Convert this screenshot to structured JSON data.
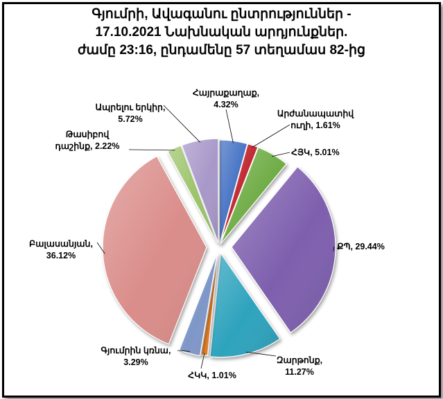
{
  "chart_data": {
    "type": "pie",
    "title_lines": [
      "Գյումրի, Ավագանու ընտրություններ -",
      "17.10.2021  Նախնական արդյունքներ.",
      "ժամը 23:16, ընդամենը 57 տեղամաս 82-ից"
    ],
    "slices": [
      {
        "name": "Հայրաքաղաք",
        "value": 4.32,
        "color": "#4472C4",
        "label": [
          "Հայրաքաղաք,",
          "4.32%"
        ]
      },
      {
        "name": "Արժանապատիվ ուղի",
        "value": 1.61,
        "color": "#C0282D",
        "label": [
          "Արժանապատիվ",
          "ուղի, 1.61%"
        ]
      },
      {
        "name": "ՀՅԿ",
        "value": 5.01,
        "color": "#70AD47",
        "label": [
          "ՀՅԿ, 5.01%"
        ]
      },
      {
        "name": "ՔՊ",
        "value": 29.44,
        "color": "#7E5FAE",
        "label": [
          "ՔՊ, 29.44%"
        ]
      },
      {
        "name": "Զարթոնք",
        "value": 11.27,
        "color": "#2EA3BD",
        "label": [
          "Զարթոնք,",
          "11.27%"
        ]
      },
      {
        "name": "ՀԿԿ",
        "value": 1.01,
        "color": "#E07B28",
        "label": [
          "ՀԿԿ, 1.01%"
        ]
      },
      {
        "name": "Գյումրին կռնա",
        "value": 3.29,
        "color": "#7F97C8",
        "label": [
          "Գյումրին կռնա,",
          "3.29%"
        ]
      },
      {
        "name": "Բալասանյան",
        "value": 36.12,
        "color": "#DA8D8A",
        "label": [
          "Բալասանյան,",
          "36.12%"
        ]
      },
      {
        "name": "Թասիբով դաշինք",
        "value": 2.22,
        "color": "#9CC46A",
        "label": [
          "Թասիբով",
          "դաշինք, 2.22%"
        ]
      },
      {
        "name": "Ապրելու երկիր",
        "value": 5.72,
        "color": "#A898C9",
        "label": [
          "Ապրելու երկիր,",
          "5.72%"
        ]
      }
    ]
  }
}
